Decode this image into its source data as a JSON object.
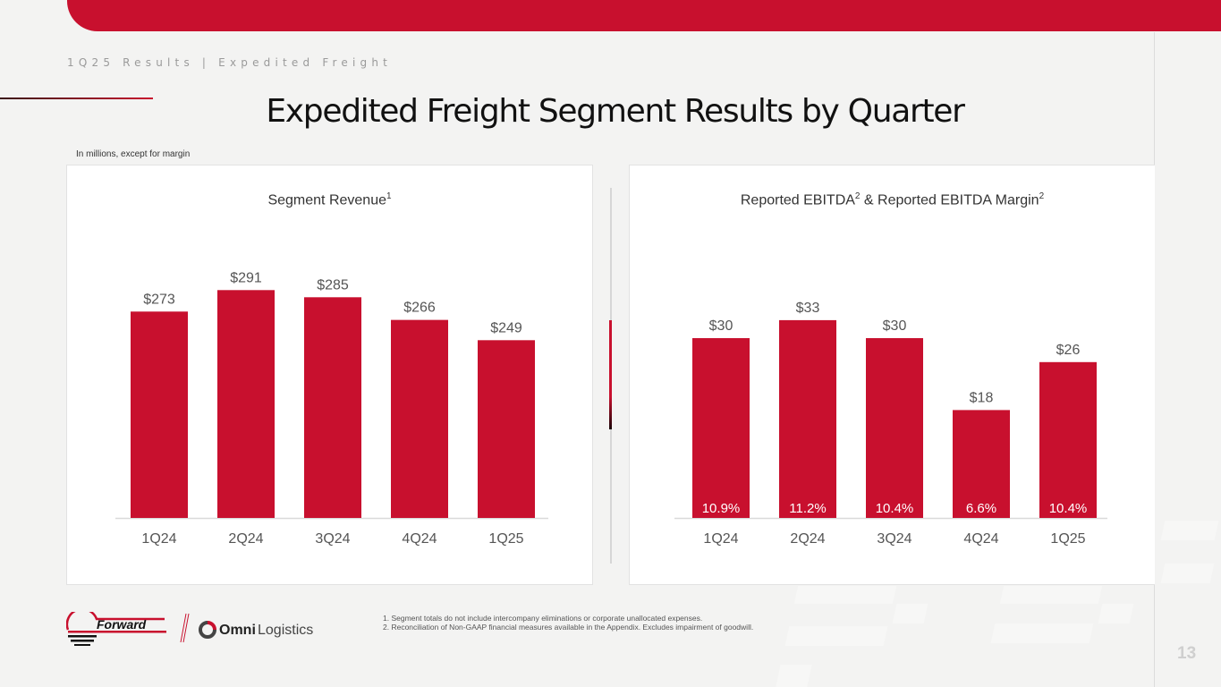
{
  "header": {
    "breadcrumb": "1Q25 Results | Expedited Freight",
    "title": "Expedited Freight Segment Results by Quarter",
    "units_note": "In millions, except for margin"
  },
  "colors": {
    "brand_red": "#c8102e",
    "text_gray": "#555555"
  },
  "chart_data": [
    {
      "type": "bar",
      "title": "Segment Revenue",
      "title_footnote": "1",
      "categories": [
        "1Q24",
        "2Q24",
        "3Q24",
        "4Q24",
        "1Q25"
      ],
      "values": [
        273,
        291,
        285,
        266,
        249
      ],
      "data_labels": [
        "$273",
        "$291",
        "$285",
        "$266",
        "$249"
      ],
      "xlabel": "",
      "ylabel": "",
      "ylim": [
        100,
        300
      ],
      "grid": false,
      "legend": "none"
    },
    {
      "type": "bar",
      "title": "Reported EBITDA & Reported EBITDA Margin",
      "title_parts": [
        "Reported EBITDA",
        "2",
        " & Reported EBITDA Margin",
        "2"
      ],
      "categories": [
        "1Q24",
        "2Q24",
        "3Q24",
        "4Q24",
        "1Q25"
      ],
      "values": [
        30,
        33,
        30,
        18,
        26
      ],
      "data_labels": [
        "$30",
        "$33",
        "$30",
        "$18",
        "$26"
      ],
      "margins": [
        "10.9%",
        "11.2%",
        "10.4%",
        "6.6%",
        "10.4%"
      ],
      "xlabel": "",
      "ylabel": "",
      "ylim": [
        0,
        35
      ],
      "grid": false,
      "legend": "none"
    }
  ],
  "logos": {
    "forward": "Forward",
    "omni_bold": "Omni",
    "omni_light": "Logistics"
  },
  "footnotes": [
    "1.  Segment totals do not include intercompany eliminations or corporate unallocated expenses.",
    "2.  Reconciliation of Non-GAAP financial measures available in the Appendix. Excludes impairment of goodwill."
  ],
  "page_number": "13"
}
